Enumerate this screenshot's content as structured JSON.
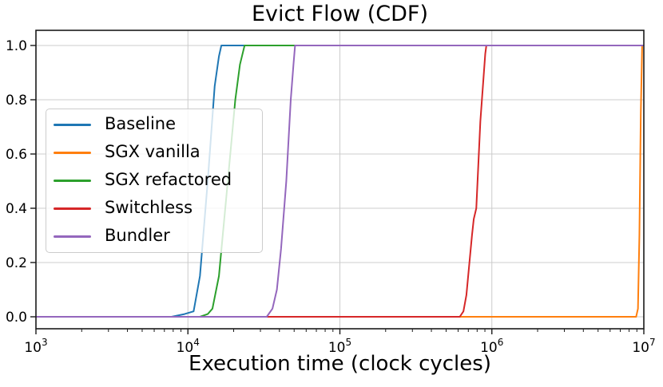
{
  "chart_data": {
    "type": "line",
    "title": "Evict Flow (CDF)",
    "xlabel": "Execution time (clock cycles)",
    "ylabel": "",
    "x_scale": "log",
    "xlim": [
      1000,
      10000000
    ],
    "ylim": [
      -0.05,
      1.05
    ],
    "grid": true,
    "legend_position": "center-left-inside",
    "axis_colors": {
      "spine": "#1a1a1a",
      "grid": "#cccccc",
      "tick": "#1a1a1a",
      "text": "#000000"
    },
    "x_ticks": [
      {
        "value": 1000,
        "base": "10",
        "exp": "3"
      },
      {
        "value": 10000,
        "base": "10",
        "exp": "4"
      },
      {
        "value": 100000,
        "base": "10",
        "exp": "5"
      },
      {
        "value": 1000000,
        "base": "10",
        "exp": "6"
      },
      {
        "value": 10000000,
        "base": "10",
        "exp": "7"
      }
    ],
    "y_ticks": [
      {
        "value": 0.0,
        "label": "0.0"
      },
      {
        "value": 0.2,
        "label": "0.2"
      },
      {
        "value": 0.4,
        "label": "0.4"
      },
      {
        "value": 0.6,
        "label": "0.6"
      },
      {
        "value": 0.8,
        "label": "0.8"
      },
      {
        "value": 1.0,
        "label": "1.0"
      }
    ],
    "series": [
      {
        "name": "Baseline",
        "color": "#1f77b4",
        "points": [
          [
            1000,
            0
          ],
          [
            7800,
            0
          ],
          [
            9500,
            0.01
          ],
          [
            10900,
            0.02
          ],
          [
            12000,
            0.15
          ],
          [
            13500,
            0.5
          ],
          [
            15000,
            0.85
          ],
          [
            16000,
            0.96
          ],
          [
            16600,
            1.0
          ],
          [
            10000000,
            1.0
          ]
        ]
      },
      {
        "name": "SGX vanilla",
        "color": "#ff7f0e",
        "points": [
          [
            1000,
            0
          ],
          [
            8900000,
            0
          ],
          [
            9150000,
            0.03
          ],
          [
            9350000,
            0.3
          ],
          [
            9550000,
            0.75
          ],
          [
            9750000,
            1.0
          ],
          [
            10000000,
            1.0
          ]
        ]
      },
      {
        "name": "SGX refactored",
        "color": "#2ca02c",
        "points": [
          [
            1000,
            0
          ],
          [
            12000,
            0
          ],
          [
            13500,
            0.01
          ],
          [
            14500,
            0.03
          ],
          [
            16000,
            0.15
          ],
          [
            18300,
            0.5
          ],
          [
            20500,
            0.8
          ],
          [
            22000,
            0.93
          ],
          [
            23600,
            1.0
          ],
          [
            10000000,
            1.0
          ]
        ]
      },
      {
        "name": "Switchless",
        "color": "#d62728",
        "points": [
          [
            1000,
            0
          ],
          [
            615000,
            0
          ],
          [
            650000,
            0.02
          ],
          [
            680000,
            0.08
          ],
          [
            712000,
            0.2
          ],
          [
            740000,
            0.3
          ],
          [
            760000,
            0.36
          ],
          [
            790000,
            0.4
          ],
          [
            840000,
            0.72
          ],
          [
            905000,
            0.97
          ],
          [
            920000,
            1.0
          ],
          [
            10000000,
            1.0
          ]
        ]
      },
      {
        "name": "Bundler",
        "color": "#9467bd",
        "points": [
          [
            1000,
            0
          ],
          [
            33000,
            0
          ],
          [
            36000,
            0.03
          ],
          [
            38500,
            0.1
          ],
          [
            41000,
            0.25
          ],
          [
            44400,
            0.5
          ],
          [
            47500,
            0.8
          ],
          [
            49500,
            0.93
          ],
          [
            50700,
            1.0
          ],
          [
            10000000,
            1.0
          ]
        ]
      }
    ]
  }
}
